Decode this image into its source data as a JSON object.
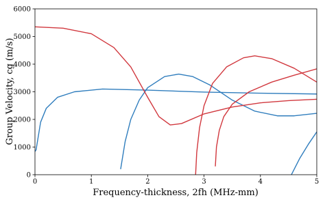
{
  "chart_data": {
    "type": "line",
    "x_label": "Frequency-thickness, 2fh (MHz-mm)",
    "y_label": "Group Velocity, cg (m/s)",
    "xlim": [
      0,
      5
    ],
    "ylim": [
      0,
      6000
    ],
    "xticks": [
      0,
      1,
      2,
      3,
      4,
      5
    ],
    "yticks": [
      0,
      1000,
      2000,
      3000,
      4000,
      5000,
      6000
    ],
    "grid": false,
    "series": [
      {
        "color": "#2f7dbd",
        "x": [
          0,
          0.02,
          0.1,
          0.2,
          0.4,
          0.7,
          1.2,
          2,
          3,
          4,
          5
        ],
        "values": [
          840,
          900,
          1900,
          2400,
          2800,
          3000,
          3100,
          3060,
          2990,
          2950,
          2920
        ]
      },
      {
        "color": "#2f7dbd",
        "x": [
          1.52,
          1.6,
          1.7,
          1.85,
          2.0,
          2.3,
          2.55,
          2.8,
          3.1,
          3.5,
          3.9,
          4.3,
          4.6,
          5
        ],
        "values": [
          200,
          1200,
          2000,
          2700,
          3150,
          3550,
          3640,
          3550,
          3250,
          2700,
          2300,
          2130,
          2130,
          2220
        ]
      },
      {
        "color": "#2f7dbd",
        "x": [
          4.55,
          4.7,
          4.85,
          5
        ],
        "values": [
          0,
          600,
          1100,
          1550
        ]
      },
      {
        "color": "#d1373d",
        "x": [
          0,
          0.5,
          1,
          1.4,
          1.7,
          2.0,
          2.2,
          2.4,
          2.6,
          3,
          3.5,
          4,
          4.5,
          5
        ],
        "values": [
          5350,
          5300,
          5100,
          4600,
          3900,
          2800,
          2100,
          1800,
          1850,
          2200,
          2450,
          2600,
          2680,
          2730
        ]
      },
      {
        "color": "#d1373d",
        "x": [
          2.85,
          2.87,
          2.92,
          3.0,
          3.15,
          3.4,
          3.7,
          3.9,
          4.2,
          4.6,
          5
        ],
        "values": [
          0,
          800,
          1700,
          2500,
          3300,
          3900,
          4230,
          4300,
          4200,
          3850,
          3350
        ]
      },
      {
        "color": "#d1373d",
        "x": [
          3.2,
          3.22,
          3.27,
          3.35,
          3.5,
          3.8,
          4.2,
          4.6,
          5
        ],
        "values": [
          300,
          1000,
          1600,
          2100,
          2550,
          3000,
          3350,
          3600,
          3830
        ]
      }
    ]
  }
}
